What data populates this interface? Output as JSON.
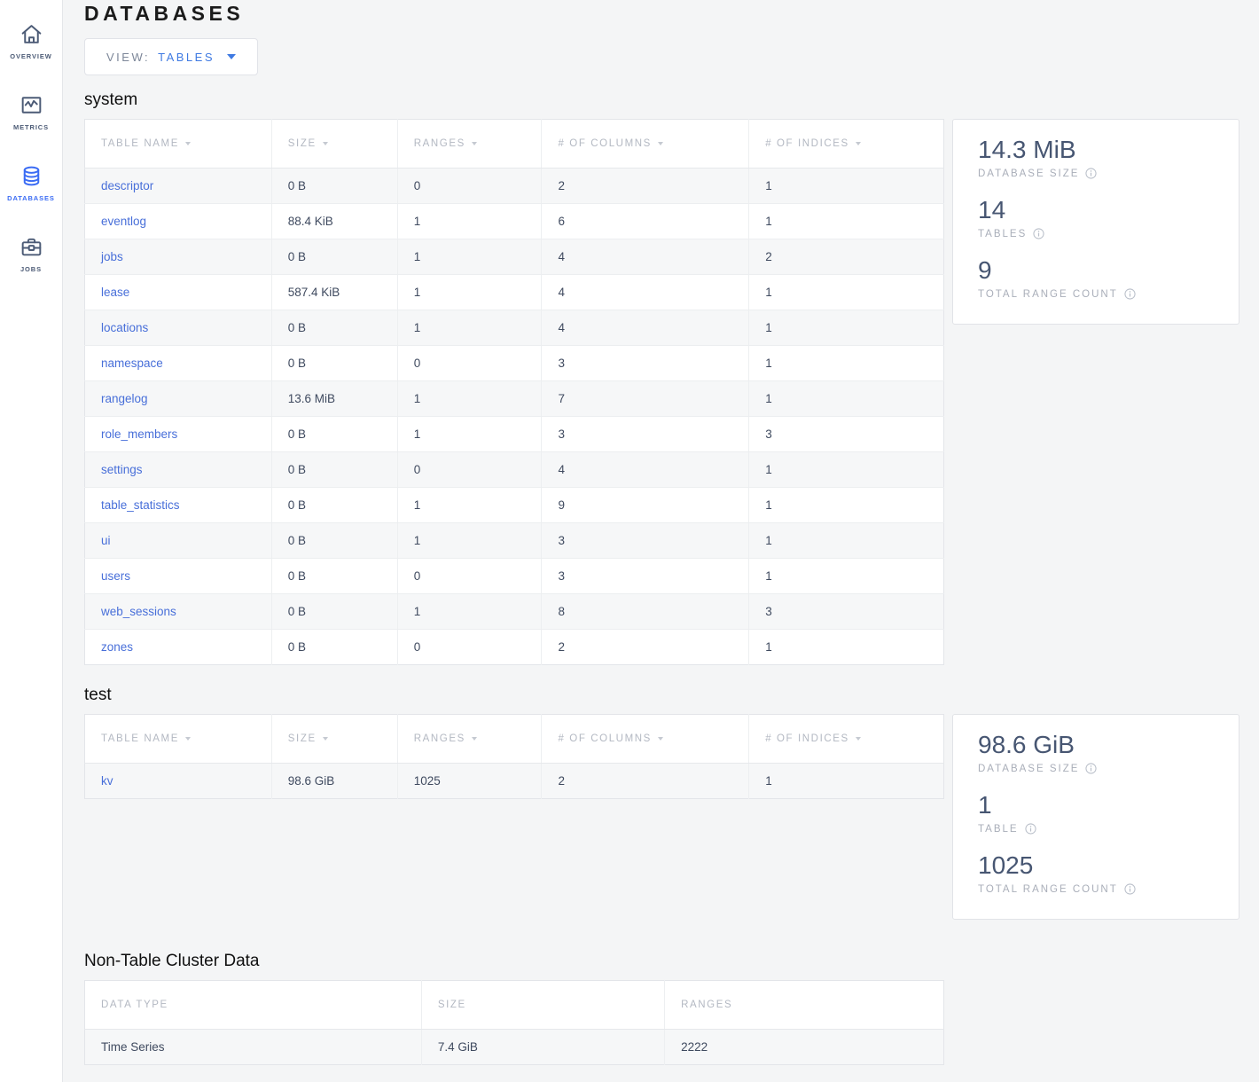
{
  "colors": {
    "accent_blue": "#3b6cf4",
    "link_blue": "#486fd9",
    "dropdown_blue": "#3f7ae2",
    "heading_dark": "#1b1b1b",
    "stat_value": "#475672",
    "muted_label": "#a9aeb9",
    "row_stripe": "#f6f7f8",
    "page_background": "#f4f5f6"
  },
  "sidebar": {
    "items": [
      {
        "label": "OVERVIEW",
        "icon": "home-icon",
        "active": false
      },
      {
        "label": "METRICS",
        "icon": "metrics-icon",
        "active": false
      },
      {
        "label": "DATABASES",
        "icon": "databases-icon",
        "active": true
      },
      {
        "label": "JOBS",
        "icon": "jobs-icon",
        "active": false
      }
    ]
  },
  "header": {
    "title": "DATABASES"
  },
  "view_selector": {
    "prefix": "VIEW:",
    "value": "TABLES",
    "icon": "chevron-down-icon"
  },
  "databases": [
    {
      "name": "system",
      "columns": [
        "TABLE NAME",
        "SIZE",
        "RANGES",
        "# OF COLUMNS",
        "# OF INDICES"
      ],
      "sortable": true,
      "rows": [
        [
          "descriptor",
          "0 B",
          "0",
          "2",
          "1"
        ],
        [
          "eventlog",
          "88.4 KiB",
          "1",
          "6",
          "1"
        ],
        [
          "jobs",
          "0 B",
          "1",
          "4",
          "2"
        ],
        [
          "lease",
          "587.4 KiB",
          "1",
          "4",
          "1"
        ],
        [
          "locations",
          "0 B",
          "1",
          "4",
          "1"
        ],
        [
          "namespace",
          "0 B",
          "0",
          "3",
          "1"
        ],
        [
          "rangelog",
          "13.6 MiB",
          "1",
          "7",
          "1"
        ],
        [
          "role_members",
          "0 B",
          "1",
          "3",
          "3"
        ],
        [
          "settings",
          "0 B",
          "0",
          "4",
          "1"
        ],
        [
          "table_statistics",
          "0 B",
          "1",
          "9",
          "1"
        ],
        [
          "ui",
          "0 B",
          "1",
          "3",
          "1"
        ],
        [
          "users",
          "0 B",
          "0",
          "3",
          "1"
        ],
        [
          "web_sessions",
          "0 B",
          "1",
          "8",
          "3"
        ],
        [
          "zones",
          "0 B",
          "0",
          "2",
          "1"
        ]
      ],
      "summary": {
        "stats": [
          {
            "value": "14.3 MiB",
            "label": "DATABASE SIZE"
          },
          {
            "value": "14",
            "label": "TABLES"
          },
          {
            "value": "9",
            "label": "TOTAL RANGE COUNT"
          }
        ]
      }
    },
    {
      "name": "test",
      "columns": [
        "TABLE NAME",
        "SIZE",
        "RANGES",
        "# OF COLUMNS",
        "# OF INDICES"
      ],
      "sortable": true,
      "rows": [
        [
          "kv",
          "98.6 GiB",
          "1025",
          "2",
          "1"
        ]
      ],
      "summary": {
        "stats": [
          {
            "value": "98.6 GiB",
            "label": "DATABASE SIZE"
          },
          {
            "value": "1",
            "label": "TABLE"
          },
          {
            "value": "1025",
            "label": "TOTAL RANGE COUNT"
          }
        ]
      }
    }
  ],
  "non_table": {
    "heading": "Non-Table Cluster Data",
    "columns": [
      "DATA TYPE",
      "SIZE",
      "RANGES"
    ],
    "sortable": false,
    "rows": [
      [
        "Time Series",
        "7.4 GiB",
        "2222"
      ]
    ]
  }
}
